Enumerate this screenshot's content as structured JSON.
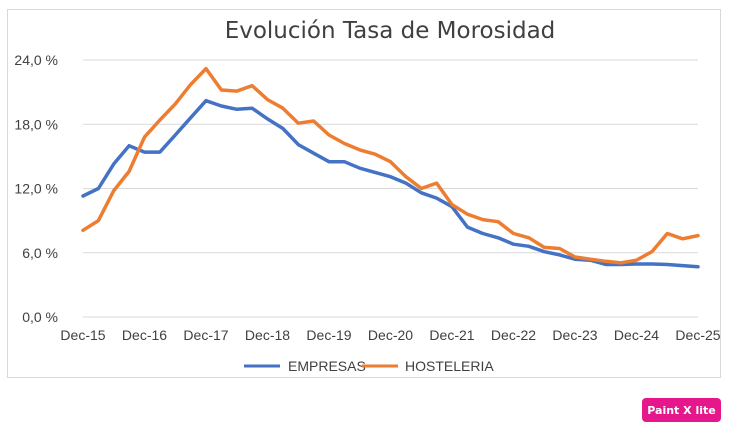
{
  "chart_data": {
    "type": "line",
    "title": "Evolución Tasa de Morosidad",
    "xlabel": "",
    "ylabel": "",
    "x_tick_labels": [
      "Dec-15",
      "Dec-16",
      "Dec-17",
      "Dec-18",
      "Dec-19",
      "Dec-20",
      "Dec-21",
      "Dec-22",
      "Dec-23",
      "Dec-24",
      "Dec-25"
    ],
    "y_tick_labels": [
      "0,0 %",
      "6,0 %",
      "12,0 %",
      "18,0 %",
      "24,0 %"
    ],
    "y_ticks": [
      0,
      6,
      12,
      18,
      24
    ],
    "ylim": [
      0,
      24
    ],
    "x_range": [
      0,
      40
    ],
    "grid": true,
    "legend_position": "bottom",
    "series": [
      {
        "name": "EMPRESAS",
        "color": "#4472c4",
        "values": [
          11.3,
          12.0,
          14.3,
          16.0,
          15.4,
          15.4,
          17.0,
          18.6,
          20.2,
          19.7,
          19.4,
          19.5,
          18.5,
          17.6,
          16.1,
          15.3,
          14.5,
          14.5,
          13.9,
          13.5,
          13.1,
          12.5,
          11.6,
          11.1,
          10.3,
          8.4,
          7.8,
          7.4,
          6.8,
          6.6,
          6.1,
          5.8,
          5.4,
          5.3,
          4.9,
          4.9,
          4.95,
          4.95,
          4.9,
          4.8,
          4.7
        ]
      },
      {
        "name": "HOSTELERIA",
        "color": "#ed7d31",
        "values": [
          8.1,
          9.0,
          11.8,
          13.6,
          16.8,
          18.4,
          19.9,
          21.7,
          23.2,
          21.2,
          21.1,
          21.6,
          20.3,
          19.5,
          18.1,
          18.3,
          17.0,
          16.2,
          15.6,
          15.2,
          14.5,
          13.1,
          12.0,
          12.5,
          10.5,
          9.6,
          9.1,
          8.9,
          7.8,
          7.4,
          6.5,
          6.4,
          5.6,
          5.4,
          5.2,
          5.05,
          5.3,
          6.1,
          7.8,
          7.3,
          7.6
        ]
      }
    ]
  },
  "badge": {
    "label": "Paint X lite"
  }
}
